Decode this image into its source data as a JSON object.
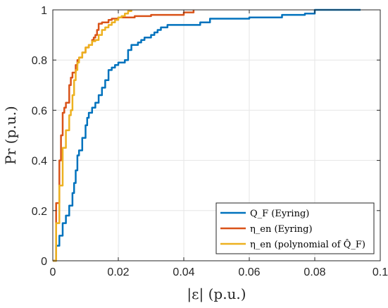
{
  "chart_data": {
    "type": "line",
    "xlabel": "|ε| (p.u.)",
    "ylabel": "Pr (p.u.)",
    "xlim": [
      0,
      0.1
    ],
    "ylim": [
      0,
      1
    ],
    "xticks": [
      0,
      0.02,
      0.04,
      0.06,
      0.08,
      0.1
    ],
    "xtick_labels": [
      "0",
      "0.02",
      "0.04",
      "0.06",
      "0.08",
      "0.1"
    ],
    "yticks": [
      0,
      0.2,
      0.4,
      0.6,
      0.8,
      1
    ],
    "ytick_labels": [
      "0",
      "0.2",
      "0.4",
      "0.6",
      "0.8",
      "1"
    ],
    "grid": true,
    "legend_position": "bottom-right",
    "series": [
      {
        "name": "Q_F (Eyring)",
        "color": "#0072BD",
        "x": [
          0,
          0.001,
          0.002,
          0.003,
          0.004,
          0.005,
          0.006,
          0.0065,
          0.007,
          0.0075,
          0.008,
          0.009,
          0.01,
          0.0105,
          0.011,
          0.012,
          0.013,
          0.014,
          0.015,
          0.016,
          0.017,
          0.018,
          0.019,
          0.02,
          0.022,
          0.023,
          0.024,
          0.026,
          0.027,
          0.028,
          0.03,
          0.031,
          0.032,
          0.033,
          0.035,
          0.04,
          0.045,
          0.048,
          0.06,
          0.07,
          0.076,
          0.077,
          0.08,
          0.09,
          0.094
        ],
        "y": [
          0,
          0.06,
          0.1,
          0.15,
          0.18,
          0.22,
          0.27,
          0.31,
          0.36,
          0.42,
          0.44,
          0.49,
          0.54,
          0.57,
          0.59,
          0.61,
          0.63,
          0.66,
          0.69,
          0.72,
          0.76,
          0.77,
          0.78,
          0.79,
          0.8,
          0.84,
          0.86,
          0.87,
          0.88,
          0.89,
          0.9,
          0.91,
          0.92,
          0.93,
          0.94,
          0.94,
          0.95,
          0.965,
          0.97,
          0.98,
          0.98,
          0.985,
          1.0,
          1.0,
          1.0
        ]
      },
      {
        "name": "η_en (Eyring)",
        "color": "#D95319",
        "x": [
          0,
          0.001,
          0.002,
          0.0025,
          0.003,
          0.0035,
          0.004,
          0.005,
          0.0055,
          0.006,
          0.007,
          0.0075,
          0.008,
          0.009,
          0.01,
          0.011,
          0.012,
          0.0125,
          0.013,
          0.0135,
          0.014,
          0.015,
          0.017,
          0.018,
          0.02,
          0.025,
          0.03,
          0.04,
          0.043
        ],
        "y": [
          0,
          0.23,
          0.4,
          0.5,
          0.59,
          0.61,
          0.63,
          0.7,
          0.73,
          0.75,
          0.78,
          0.8,
          0.81,
          0.83,
          0.85,
          0.86,
          0.88,
          0.89,
          0.9,
          0.92,
          0.945,
          0.95,
          0.96,
          0.965,
          0.97,
          0.975,
          0.98,
          0.99,
          1.0
        ]
      },
      {
        "name": "η_en (polynomial of Q̂_F)",
        "color": "#EDB120",
        "x": [
          0,
          0.001,
          0.002,
          0.003,
          0.004,
          0.005,
          0.0055,
          0.006,
          0.0065,
          0.007,
          0.0075,
          0.008,
          0.009,
          0.01,
          0.011,
          0.012,
          0.013,
          0.014,
          0.015,
          0.016,
          0.017,
          0.018,
          0.019,
          0.02,
          0.021,
          0.022,
          0.023,
          0.024
        ],
        "y": [
          0,
          0.15,
          0.3,
          0.45,
          0.52,
          0.58,
          0.6,
          0.66,
          0.72,
          0.76,
          0.79,
          0.81,
          0.83,
          0.85,
          0.86,
          0.875,
          0.88,
          0.9,
          0.92,
          0.93,
          0.94,
          0.95,
          0.96,
          0.97,
          0.975,
          0.985,
          0.995,
          1.0
        ]
      }
    ]
  }
}
